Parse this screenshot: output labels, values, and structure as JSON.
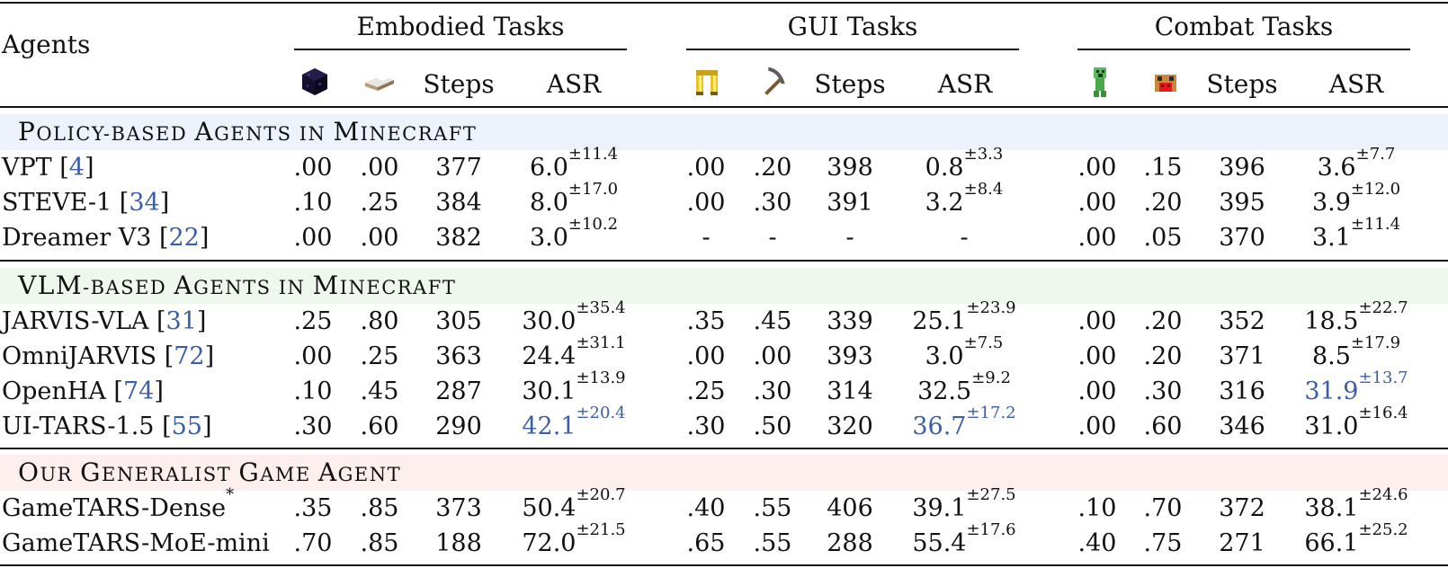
{
  "header": {
    "agents_label": "Agents",
    "groups": [
      "Embodied Tasks",
      "GUI Tasks",
      "Combat Tasks"
    ],
    "steps_label": "Steps",
    "asr_label": "ASR",
    "icons": [
      "obsidian-block-icon",
      "bed-icon",
      "golden-boots-icon",
      "pickaxe-icon",
      "creeper-icon",
      "mooshroom-icon"
    ]
  },
  "sections": [
    {
      "title_parts": [
        [
          "P",
          "OLICY-BASED "
        ],
        [
          "A",
          "GENTS IN "
        ],
        [
          "M",
          "INECRAFT"
        ]
      ],
      "band_color": "#eef2fc",
      "rows": [
        {
          "name": "VPT [",
          "ref": "4",
          "close": "]",
          "cells": [
            ".00",
            ".00",
            "377",
            "6.0",
            "±11.4",
            ".00",
            ".20",
            "398",
            "0.8",
            "±3.3",
            ".00",
            ".15",
            "396",
            "3.6",
            "±7.7"
          ]
        },
        {
          "name": "STEVE-1 [",
          "ref": "34",
          "close": "]",
          "cells": [
            ".10",
            ".25",
            "384",
            "8.0",
            "±17.0",
            ".00",
            ".30",
            "391",
            "3.2",
            "±8.4",
            ".00",
            ".20",
            "395",
            "3.9",
            "±12.0"
          ]
        },
        {
          "name": "Dreamer V3 [",
          "ref": "22",
          "close": "]",
          "cells": [
            ".00",
            ".00",
            "382",
            "3.0",
            "±10.2",
            "-",
            "-",
            "-",
            "-",
            "",
            ".00",
            ".05",
            "370",
            "3.1",
            "±11.4"
          ]
        }
      ]
    },
    {
      "title_parts": [
        [
          "VLM",
          "-BASED "
        ],
        [
          "A",
          "GENTS IN "
        ],
        [
          "M",
          "INECRAFT"
        ]
      ],
      "band_color": "#eef8ec",
      "rows": [
        {
          "name": "JARVIS-VLA [",
          "ref": "31",
          "close": "]",
          "cells": [
            ".25",
            ".80",
            "305",
            "30.0",
            "±35.4",
            ".35",
            ".45",
            "339",
            "25.1",
            "±23.9",
            ".00",
            ".20",
            "352",
            "18.5",
            "±22.7"
          ]
        },
        {
          "name": "OmniJARVIS [",
          "ref": "72",
          "close": "]",
          "cells": [
            ".00",
            ".25",
            "363",
            "24.4",
            "±31.1",
            ".00",
            ".00",
            "393",
            "3.0",
            "±7.5",
            ".00",
            ".20",
            "371",
            "8.5",
            "±17.9"
          ]
        },
        {
          "name": "OpenHA [",
          "ref": "74",
          "close": "]",
          "cells": [
            ".10",
            ".45",
            "287",
            "30.1",
            "±13.9",
            ".25",
            ".30",
            "314",
            "32.5",
            "±9.2",
            ".00",
            ".30",
            "316",
            "31.9",
            "±13.7"
          ]
        },
        {
          "name": "UI-TARS-1.5 [",
          "ref": "55",
          "close": "]",
          "cells": [
            ".30",
            ".60",
            "290",
            "42.1",
            "±20.4",
            ".30",
            ".50",
            "320",
            "36.7",
            "±17.2",
            ".00",
            ".60",
            "346",
            "31.0",
            "±16.4"
          ]
        }
      ]
    },
    {
      "title_parts": [
        [
          "O",
          "UR "
        ],
        [
          "G",
          "ENERALIST "
        ],
        [
          "G",
          "AME "
        ],
        [
          "A",
          "GENT"
        ]
      ],
      "band_color": "#fcefee",
      "rows": [
        {
          "name": "GameTARS-Dense",
          "ref": "",
          "close": "",
          "star": "*",
          "cells": [
            ".35",
            ".85",
            "373",
            "50.4",
            "±20.7",
            ".40",
            ".55",
            "406",
            "39.1",
            "±27.5",
            ".10",
            ".70",
            "372",
            "38.1",
            "±24.6"
          ]
        },
        {
          "name": "GameTARS-MoE-mini",
          "ref": "",
          "close": "",
          "cells": [
            ".70",
            ".85",
            "188",
            "72.0",
            "±21.5",
            ".65",
            ".55",
            "288",
            "55.4",
            "±17.6",
            ".40",
            ".75",
            "271",
            "66.1",
            "±25.2"
          ]
        }
      ]
    }
  ],
  "highlight_color": "#3a5ea8"
}
